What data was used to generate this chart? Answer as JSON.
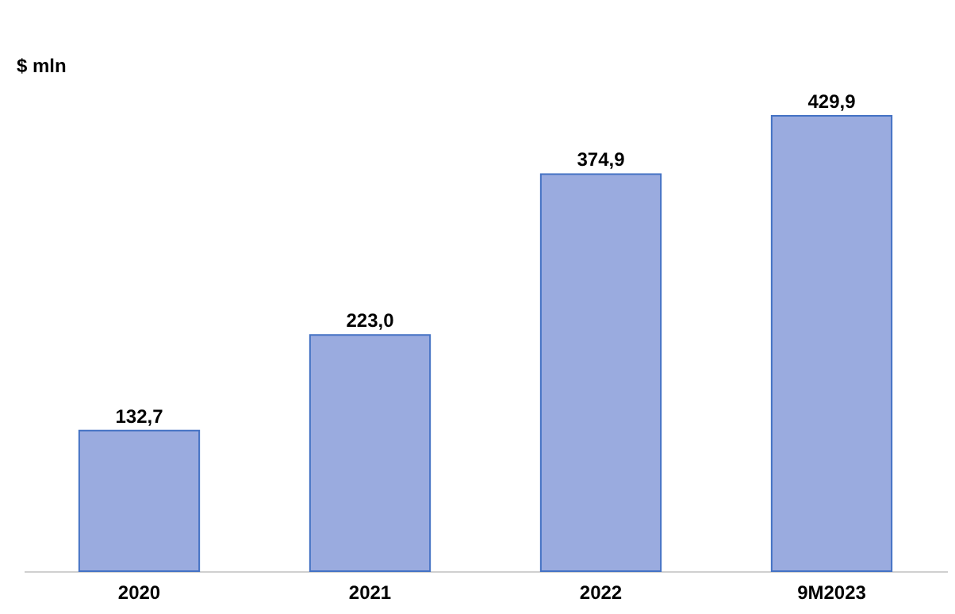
{
  "chart_data": {
    "type": "bar",
    "ylabel": "$ mln",
    "categories": [
      "2020",
      "2021",
      "2022",
      "9M2023"
    ],
    "values": [
      132.7,
      223.0,
      374.9,
      429.9
    ],
    "value_labels": [
      "132,7",
      "223,0",
      "374,9",
      "429,9"
    ],
    "color": "#9aabdf",
    "grid": false
  }
}
